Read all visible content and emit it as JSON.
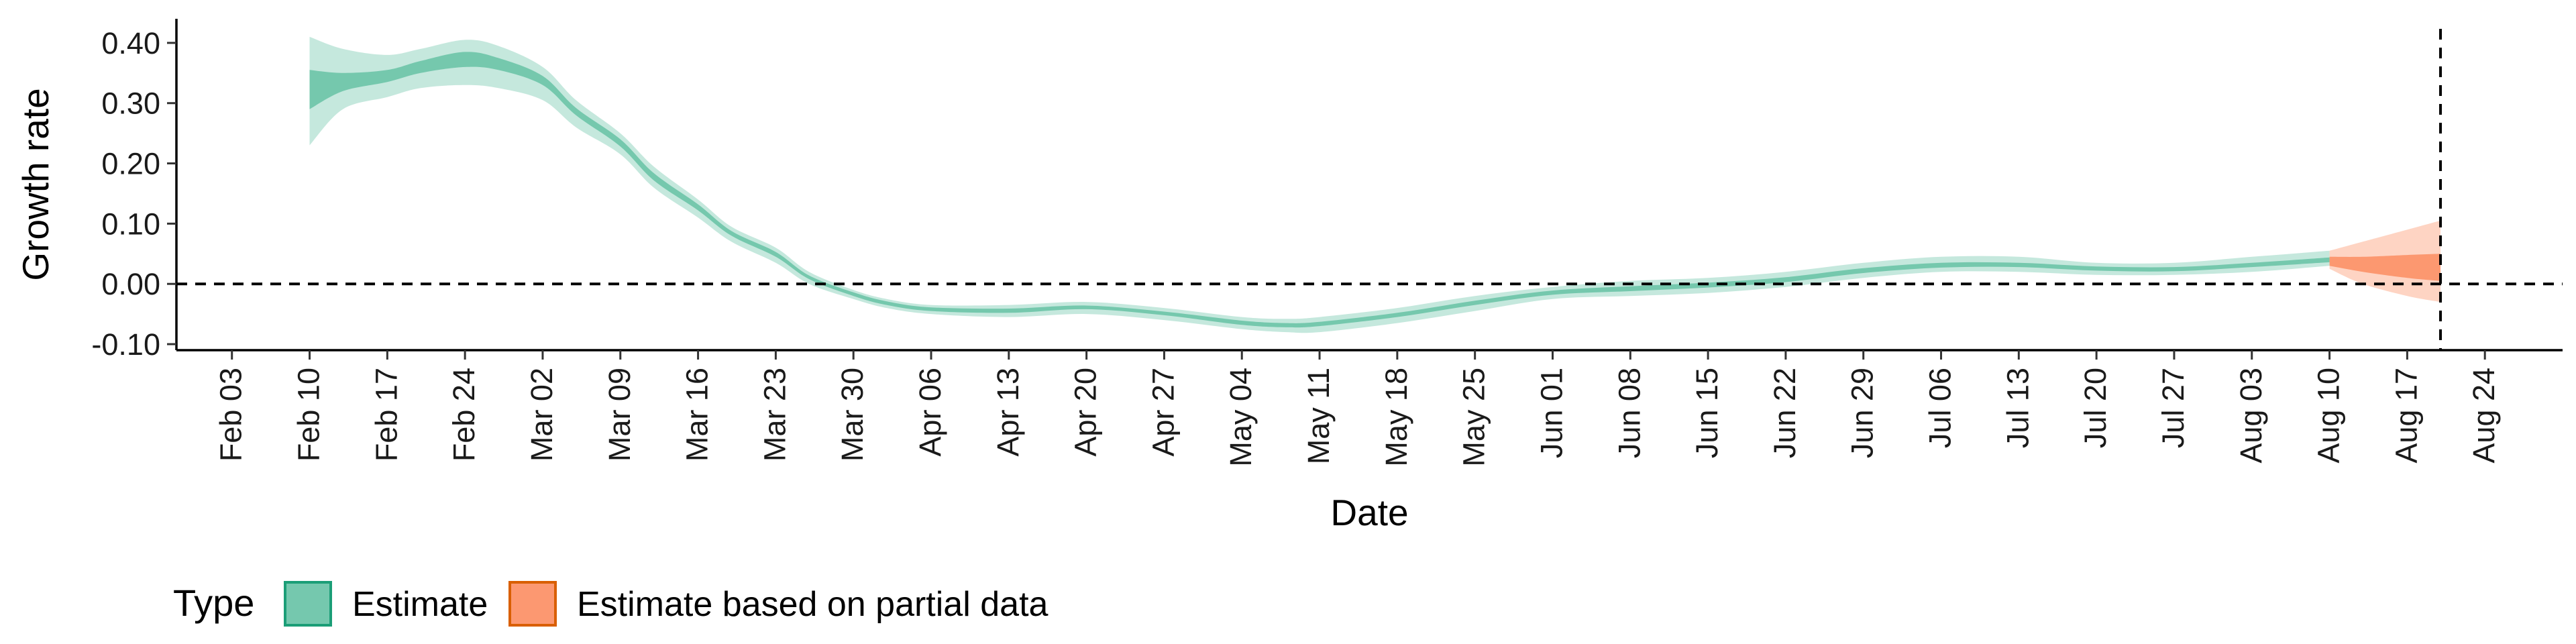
{
  "chart_data": {
    "type": "area",
    "title": "",
    "xlabel": "Date",
    "ylabel": "Growth rate",
    "x_axis": {
      "type": "date",
      "range": [
        "2020-01-29",
        "2020-08-31"
      ],
      "ticks": [
        "2020-02-03",
        "2020-02-10",
        "2020-02-17",
        "2020-02-24",
        "2020-03-02",
        "2020-03-09",
        "2020-03-16",
        "2020-03-23",
        "2020-03-30",
        "2020-04-06",
        "2020-04-13",
        "2020-04-20",
        "2020-04-27",
        "2020-05-04",
        "2020-05-11",
        "2020-05-18",
        "2020-05-25",
        "2020-06-01",
        "2020-06-08",
        "2020-06-15",
        "2020-06-22",
        "2020-06-29",
        "2020-07-06",
        "2020-07-13",
        "2020-07-20",
        "2020-07-27",
        "2020-08-03",
        "2020-08-10",
        "2020-08-17",
        "2020-08-24"
      ],
      "tick_labels": [
        "Feb 03",
        "Feb 10",
        "Feb 17",
        "Feb 24",
        "Mar 02",
        "Mar 09",
        "Mar 16",
        "Mar 23",
        "Mar 30",
        "Apr 06",
        "Apr 13",
        "Apr 20",
        "Apr 27",
        "May 04",
        "May 11",
        "May 18",
        "May 25",
        "Jun 01",
        "Jun 08",
        "Jun 15",
        "Jun 22",
        "Jun 29",
        "Jul 06",
        "Jul 13",
        "Jul 20",
        "Jul 27",
        "Aug 03",
        "Aug 10",
        "Aug 17",
        "Aug 24"
      ]
    },
    "y_axis": {
      "range": [
        -0.11,
        0.44
      ],
      "ticks": [
        -0.1,
        0.0,
        0.1,
        0.2,
        0.3,
        0.4
      ],
      "tick_labels": [
        "-0.10",
        "0.00",
        "0.10",
        "0.20",
        "0.30",
        "0.40"
      ]
    },
    "reference_lines": {
      "hline_y": 0.0,
      "vline_date": "2020-08-20"
    },
    "grid": false,
    "legend": {
      "position": "bottom-left",
      "title": "Type",
      "entries": [
        {
          "label": "Estimate",
          "color": "#66c2a5"
        },
        {
          "label": "Estimate based on partial data",
          "color": "#fc8d62"
        }
      ]
    },
    "series": [
      {
        "name": "Estimate",
        "color": "#66c2a5",
        "x": [
          "2020-02-10",
          "2020-02-13",
          "2020-02-17",
          "2020-02-20",
          "2020-02-24",
          "2020-02-27",
          "2020-03-02",
          "2020-03-05",
          "2020-03-09",
          "2020-03-12",
          "2020-03-16",
          "2020-03-19",
          "2020-03-23",
          "2020-03-26",
          "2020-03-30",
          "2020-04-02",
          "2020-04-06",
          "2020-04-13",
          "2020-04-20",
          "2020-04-27",
          "2020-05-04",
          "2020-05-08",
          "2020-05-11",
          "2020-05-18",
          "2020-05-25",
          "2020-06-01",
          "2020-06-08",
          "2020-06-15",
          "2020-06-22",
          "2020-06-29",
          "2020-07-06",
          "2020-07-13",
          "2020-07-20",
          "2020-07-27",
          "2020-08-03",
          "2020-08-10"
        ],
        "outer_lower": [
          0.23,
          0.29,
          0.31,
          0.325,
          0.33,
          0.325,
          0.305,
          0.26,
          0.215,
          0.16,
          0.11,
          0.07,
          0.035,
          0.0,
          -0.025,
          -0.04,
          -0.05,
          -0.055,
          -0.05,
          -0.06,
          -0.075,
          -0.08,
          -0.08,
          -0.065,
          -0.045,
          -0.025,
          -0.02,
          -0.015,
          -0.005,
          0.01,
          0.02,
          0.02,
          0.015,
          0.015,
          0.02,
          0.03
        ],
        "outer_upper": [
          0.41,
          0.39,
          0.38,
          0.39,
          0.405,
          0.395,
          0.36,
          0.305,
          0.25,
          0.195,
          0.14,
          0.095,
          0.06,
          0.02,
          -0.01,
          -0.025,
          -0.035,
          -0.035,
          -0.03,
          -0.04,
          -0.055,
          -0.058,
          -0.055,
          -0.04,
          -0.02,
          -0.005,
          0.005,
          0.01,
          0.02,
          0.035,
          0.045,
          0.045,
          0.035,
          0.035,
          0.045,
          0.055
        ],
        "inner_lower": [
          0.29,
          0.32,
          0.335,
          0.35,
          0.36,
          0.355,
          0.33,
          0.28,
          0.228,
          0.172,
          0.122,
          0.08,
          0.045,
          0.008,
          -0.02,
          -0.035,
          -0.045,
          -0.048,
          -0.042,
          -0.052,
          -0.068,
          -0.072,
          -0.07,
          -0.055,
          -0.035,
          -0.018,
          -0.012,
          -0.006,
          0.003,
          0.018,
          0.027,
          0.028,
          0.022,
          0.021,
          0.028,
          0.036
        ],
        "inner_upper": [
          0.355,
          0.35,
          0.355,
          0.37,
          0.385,
          0.375,
          0.345,
          0.292,
          0.24,
          0.184,
          0.132,
          0.088,
          0.053,
          0.014,
          -0.014,
          -0.029,
          -0.039,
          -0.041,
          -0.036,
          -0.046,
          -0.061,
          -0.065,
          -0.063,
          -0.048,
          -0.028,
          -0.011,
          -0.004,
          0.002,
          0.011,
          0.026,
          0.035,
          0.035,
          0.029,
          0.028,
          0.035,
          0.044
        ]
      },
      {
        "name": "Estimate based on partial data",
        "color": "#fc8d62",
        "x": [
          "2020-08-10",
          "2020-08-13",
          "2020-08-17",
          "2020-08-20"
        ],
        "outer_lower": [
          0.025,
          0.0,
          -0.02,
          -0.03
        ],
        "outer_upper": [
          0.055,
          0.07,
          0.09,
          0.105
        ],
        "inner_lower": [
          0.03,
          0.02,
          0.01,
          0.005
        ],
        "inner_upper": [
          0.045,
          0.045,
          0.048,
          0.05
        ]
      }
    ]
  }
}
